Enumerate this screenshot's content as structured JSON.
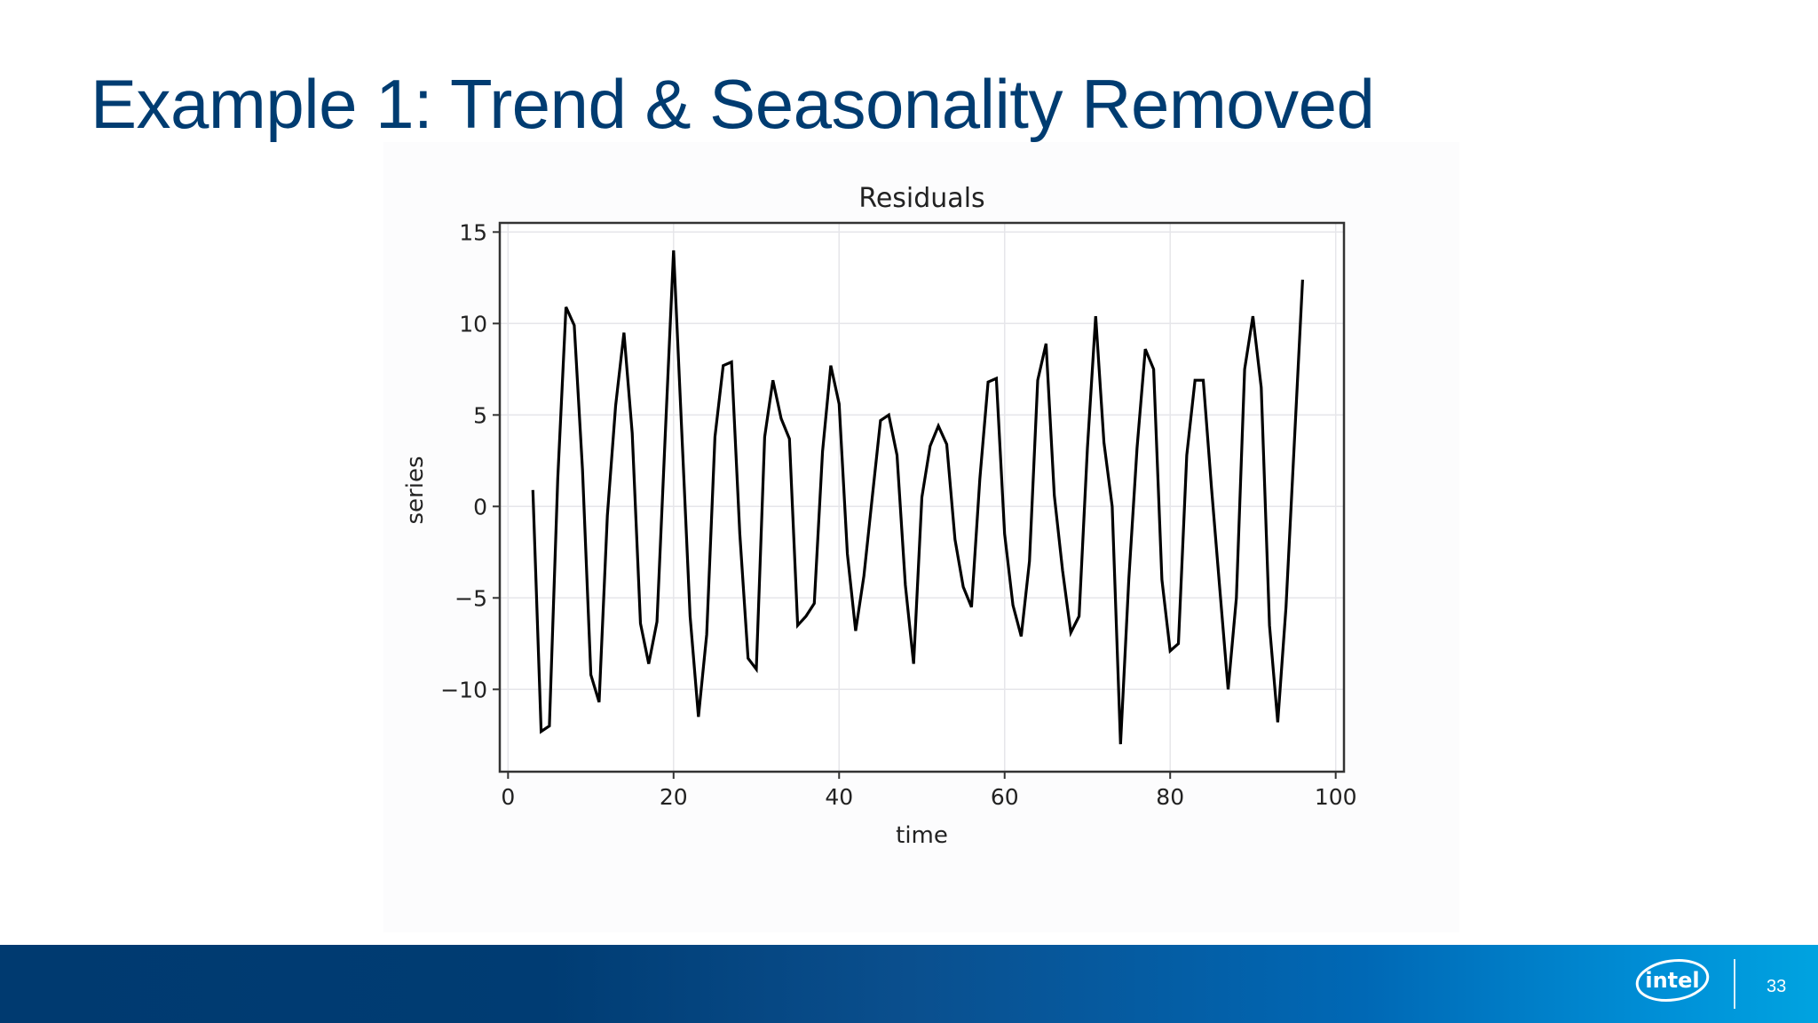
{
  "slide": {
    "title": "Example 1: Trend & Seasonality Removed",
    "page_number": "33",
    "logo_text": "intel"
  },
  "colors": {
    "title": "#003c71",
    "footer_start": "#003a70",
    "footer_end": "#00a3e0",
    "line": "#000000",
    "grid": "#e6e6ea"
  },
  "chart_data": {
    "type": "line",
    "title": "Residuals",
    "xlabel": "time",
    "ylabel": "series",
    "xlim": [
      -1,
      101
    ],
    "ylim": [
      -14.5,
      15.5
    ],
    "xticks": [
      0,
      20,
      40,
      60,
      80,
      100
    ],
    "xtick_labels": [
      "0",
      "20",
      "40",
      "60",
      "80",
      "100"
    ],
    "yticks": [
      -10,
      -5,
      0,
      5,
      10,
      15
    ],
    "ytick_labels": [
      "−10",
      "−5",
      "0",
      "5",
      "10",
      "15"
    ],
    "grid": true,
    "legend": null,
    "series": [
      {
        "name": "residuals",
        "x": [
          3,
          4,
          5,
          6,
          7,
          8,
          9,
          10,
          11,
          12,
          13,
          14,
          15,
          16,
          17,
          18,
          19,
          20,
          21,
          22,
          23,
          24,
          25,
          26,
          27,
          28,
          29,
          30,
          31,
          32,
          33,
          34,
          35,
          36,
          37,
          38,
          39,
          40,
          41,
          42,
          43,
          44,
          45,
          46,
          47,
          48,
          49,
          50,
          51,
          52,
          53,
          54,
          55,
          56,
          57,
          58,
          59,
          60,
          61,
          62,
          63,
          64,
          65,
          66,
          67,
          68,
          69,
          70,
          71,
          72,
          73,
          74,
          75,
          76,
          77,
          78,
          79,
          80,
          81,
          82,
          83,
          84,
          85,
          86,
          87,
          88,
          89,
          90,
          91,
          92,
          93,
          94,
          95,
          96
        ],
        "values": [
          0.9,
          -12.3,
          -12.0,
          1.5,
          10.9,
          9.9,
          2.0,
          -9.2,
          -10.7,
          -0.5,
          5.5,
          9.5,
          4.0,
          -6.4,
          -8.6,
          -6.3,
          4.0,
          14.0,
          4.0,
          -6.0,
          -11.5,
          -7.0,
          3.8,
          7.7,
          7.9,
          -1.5,
          -8.3,
          -8.9,
          3.8,
          6.9,
          4.8,
          3.7,
          -6.5,
          -6.0,
          -5.3,
          3.0,
          7.7,
          5.6,
          -2.6,
          -6.8,
          -3.8,
          0.5,
          4.7,
          5.0,
          2.8,
          -4.3,
          -8.6,
          0.5,
          3.3,
          4.4,
          3.4,
          -1.8,
          -4.4,
          -5.5,
          1.5,
          6.8,
          7.0,
          -1.5,
          -5.4,
          -7.1,
          -3.0,
          6.9,
          8.9,
          0.6,
          -3.5,
          -6.9,
          -6.0,
          3.2,
          10.4,
          3.5,
          0.0,
          -13.0,
          -4.0,
          3.2,
          8.6,
          7.5,
          -4.0,
          -7.9,
          -7.5,
          2.8,
          6.9,
          6.9,
          1.0,
          -4.5,
          -10.0,
          -5.0,
          7.5,
          10.4,
          6.5,
          -6.5,
          -11.8,
          -5.5,
          3.5,
          12.4
        ]
      }
    ]
  }
}
